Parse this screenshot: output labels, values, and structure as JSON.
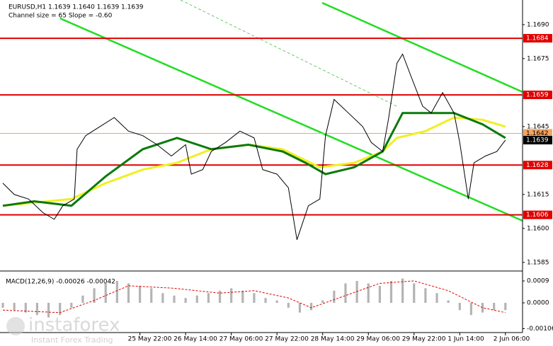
{
  "chart_data": {
    "type": "line",
    "title": "EURUSD,H1  1.1639 1.1640 1.1639 1.1639",
    "subtitle": "Channel size = 65 Slope = -0.60",
    "xlim": [
      -1,
      182
    ],
    "ylim": [
      1.15812,
      1.17009
    ],
    "xticks": [
      {
        "value": 48,
        "label": "25 May 22:00"
      },
      {
        "value": 64,
        "label": "26 May 14:00"
      },
      {
        "value": 80,
        "label": "27 May 06:00"
      },
      {
        "value": 96,
        "label": "27 May 22:00"
      },
      {
        "value": 112,
        "label": "28 May 14:00"
      },
      {
        "value": 128,
        "label": "29 May 06:00"
      },
      {
        "value": 144,
        "label": "29 May 22:00"
      },
      {
        "value": 160,
        "label": "1 Jun 14:00"
      },
      {
        "value": 176,
        "label": "2 Jun 06:00"
      }
    ],
    "yticks": [
      {
        "value": 1.169,
        "label": "1.1690"
      },
      1.1675,
      1.1645,
      1.1615,
      {
        "value": 1.16,
        "label": "1.1600"
      },
      1.1585
    ],
    "levels": [
      {
        "value": 1.1684,
        "color": "#e00000"
      },
      {
        "value": 1.1659,
        "color": "#e00000"
      },
      {
        "value": 1.1628,
        "color": "#e00000"
      },
      {
        "value": 1.1606,
        "color": "#e00000"
      },
      {
        "value": 1.1642,
        "color": "#f4a460"
      },
      {
        "value": 1.1639,
        "color": "#000000"
      }
    ],
    "series": [
      {
        "name": "EURUSD",
        "color": "#000000",
        "x": [
          0,
          4,
          9,
          14,
          18,
          21,
          25,
          26,
          29,
          34,
          39,
          44,
          49,
          54,
          59,
          64,
          66,
          70,
          73,
          78,
          83,
          88,
          91,
          96,
          100,
          103,
          107,
          111,
          113,
          116,
          121,
          126,
          129,
          133,
          135,
          138,
          140,
          143,
          147,
          150,
          154,
          158,
          160,
          163,
          165,
          169,
          173,
          176
        ],
        "values": [
          1.162,
          1.1615,
          1.1613,
          1.1607,
          1.1604,
          1.161,
          1.1613,
          1.1635,
          1.1641,
          1.1645,
          1.1649,
          1.1643,
          1.1641,
          1.1637,
          1.1632,
          1.1637,
          1.1624,
          1.1626,
          1.1634,
          1.1638,
          1.1643,
          1.164,
          1.1626,
          1.1624,
          1.1618,
          1.1595,
          1.161,
          1.1613,
          1.1641,
          1.1657,
          1.1651,
          1.1645,
          1.1638,
          1.1634,
          1.1648,
          1.1673,
          1.1677,
          1.1667,
          1.1654,
          1.1651,
          1.166,
          1.1651,
          1.1638,
          1.1613,
          1.1629,
          1.1632,
          1.1634,
          1.1639
        ]
      },
      {
        "name": "MA green",
        "color": "#0a7a0a",
        "x": [
          0,
          11,
          24,
          36,
          49,
          61,
          73,
          86,
          98,
          106,
          113,
          123,
          133,
          140,
          148,
          158,
          168,
          176
        ],
        "values": [
          1.161,
          1.1612,
          1.161,
          1.1623,
          1.1635,
          1.164,
          1.1635,
          1.1637,
          1.1634,
          1.1629,
          1.1624,
          1.1627,
          1.1634,
          1.1651,
          1.1651,
          1.1651,
          1.1646,
          1.164
        ]
      },
      {
        "name": "MA yellow",
        "color": "#f0f020",
        "x": [
          0,
          24,
          36,
          49,
          61,
          73,
          86,
          98,
          111,
          123,
          133,
          138,
          148,
          158,
          168,
          176
        ],
        "values": [
          1.161,
          1.1613,
          1.162,
          1.1626,
          1.1629,
          1.1635,
          1.1637,
          1.1635,
          1.1627,
          1.1629,
          1.1634,
          1.164,
          1.1643,
          1.1649,
          1.1648,
          1.1645
        ]
      }
    ],
    "macd": {
      "type": "bar",
      "title": "MACD(12,26,9) -0.00026 -0.00042",
      "ylim": [
        -0.00122,
        0.00125
      ],
      "yticks": [
        0.0009,
        {
          "value": 0,
          "label": "0.0000"
        },
        -0.00106
      ],
      "color": "#b4b4b4",
      "x": [
        0,
        4,
        8,
        12,
        16,
        20,
        24,
        28,
        32,
        36,
        40,
        44,
        48,
        52,
        56,
        60,
        64,
        68,
        72,
        76,
        80,
        84,
        88,
        92,
        96,
        100,
        104,
        108,
        112,
        116,
        120,
        124,
        128,
        132,
        136,
        140,
        144,
        148,
        152,
        156,
        160,
        164,
        168,
        172,
        176
      ],
      "values": [
        -0.0002,
        -0.0003,
        -0.0004,
        -0.0005,
        -0.0006,
        -0.0005,
        -0.0002,
        0.0003,
        0.0006,
        0.0008,
        0.0009,
        0.0008,
        0.0007,
        0.0006,
        0.0004,
        0.0003,
        0.0002,
        0.0003,
        0.0004,
        0.0005,
        0.0006,
        0.0005,
        0.0004,
        0.0002,
        0.0001,
        -0.0002,
        -0.0004,
        -0.0003,
        0.0001,
        0.0005,
        0.0008,
        0.0009,
        0.0008,
        0.0007,
        0.0009,
        0.001,
        0.0008,
        0.0006,
        0.0004,
        0.0001,
        -0.0003,
        -0.0005,
        -0.0004,
        -0.0003,
        -0.0003
      ],
      "signal": {
        "color": "#e00000",
        "x": [
          0,
          20,
          32,
          44,
          60,
          76,
          88,
          100,
          108,
          120,
          132,
          144,
          156,
          168,
          176
        ],
        "values": [
          -0.0003,
          -0.0004,
          0.0001,
          0.0007,
          0.0006,
          0.0004,
          0.0005,
          0.0002,
          -0.0002,
          0.0003,
          0.0008,
          0.0009,
          0.0005,
          -0.0002,
          -0.0004
        ]
      }
    },
    "watermark": {
      "brand": "instaforex",
      "tagline": "Instant Forex Trading"
    }
  }
}
